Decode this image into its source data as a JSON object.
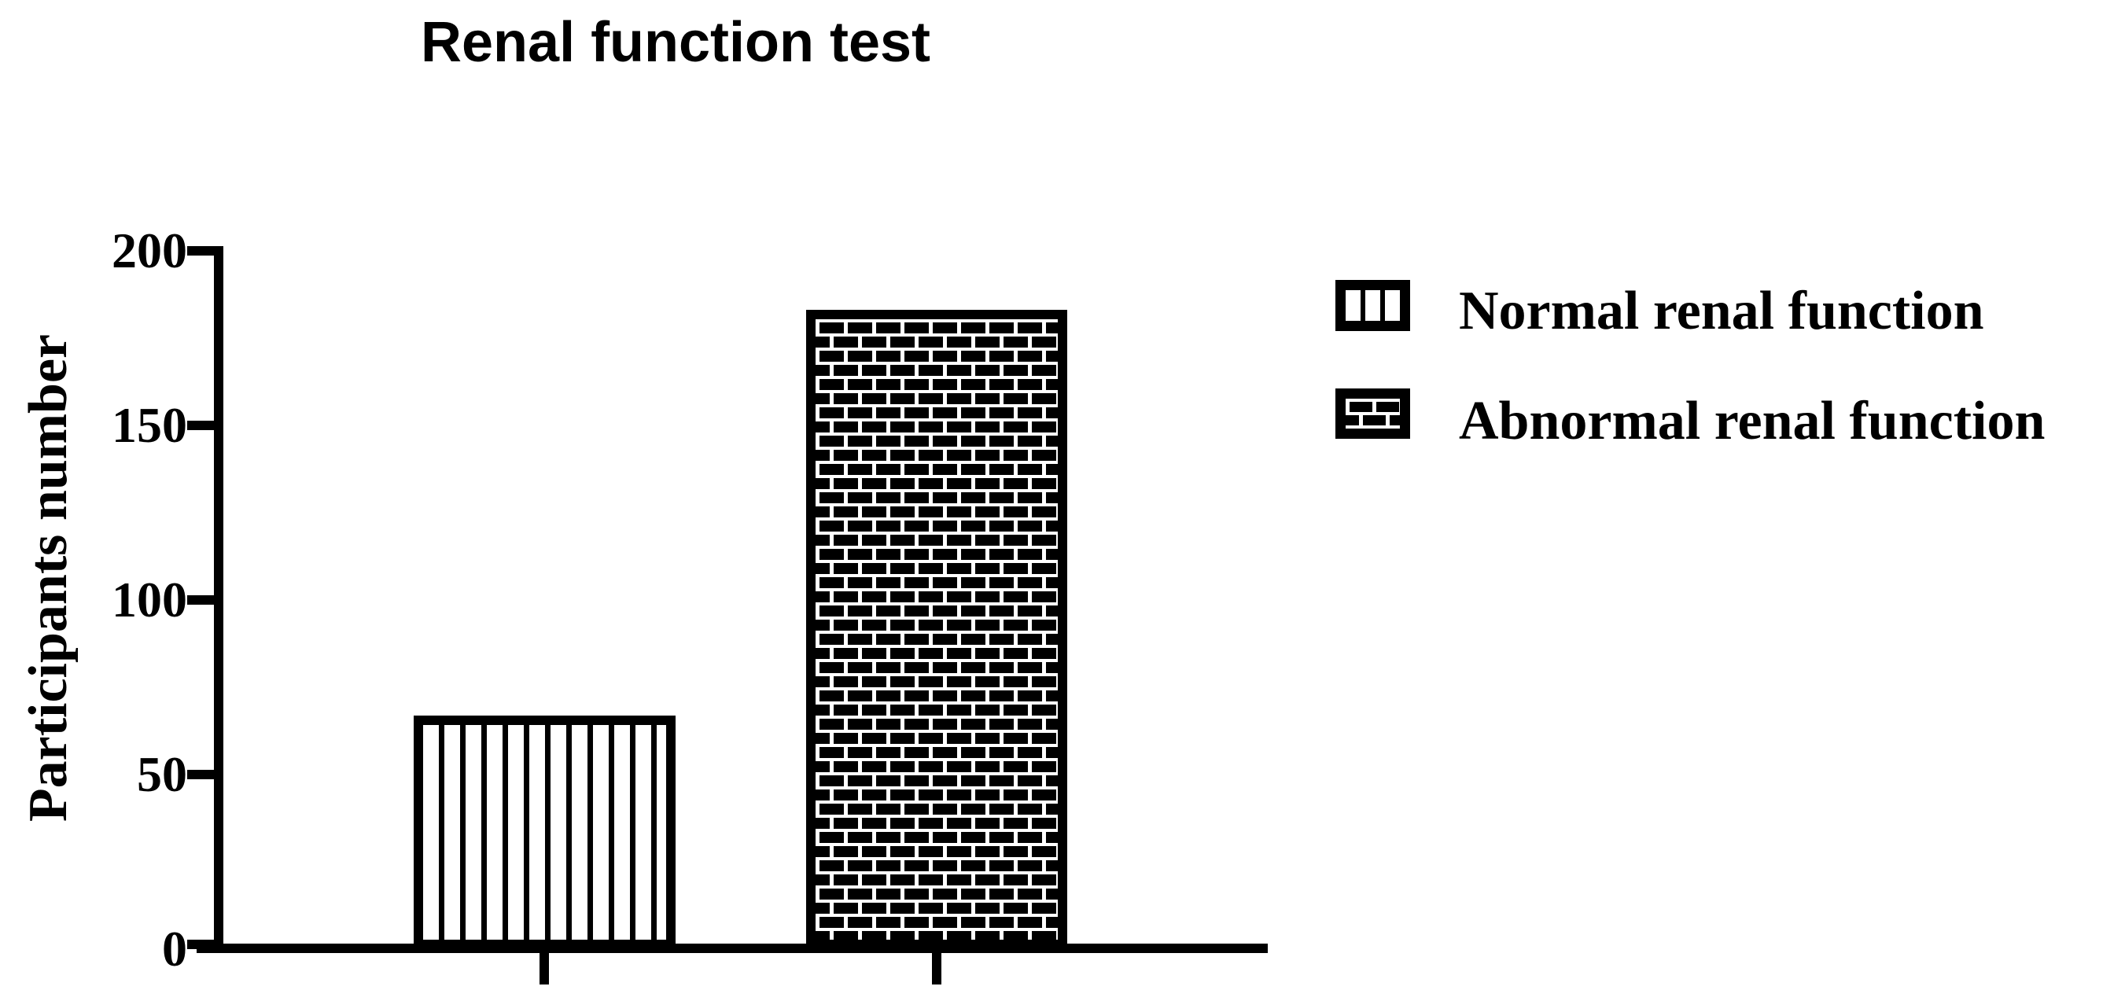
{
  "title": "Renal function test",
  "axes": {
    "y_label": "Participants number",
    "y_ticks": [
      "200",
      "150",
      "100",
      "50",
      "0"
    ]
  },
  "legend": {
    "items": [
      {
        "label": "Normal renal function",
        "pattern": "vertical-stripes"
      },
      {
        "label": "Abnormal renal function",
        "pattern": "bricks"
      }
    ]
  },
  "chart_data": {
    "type": "bar",
    "title": "Renal function test",
    "xlabel": "",
    "ylabel": "Participants number",
    "categories": [
      "Normal renal function",
      "Abnormal renal function"
    ],
    "values": [
      67,
      183
    ],
    "series": [
      {
        "name": "Normal renal function",
        "value": 67,
        "pattern": "vertical-stripes",
        "fill": "#ffffff",
        "stroke": "#000000"
      },
      {
        "name": "Abnormal renal function",
        "value": 183,
        "pattern": "bricks",
        "fill": "#000000",
        "stroke": "#000000"
      }
    ],
    "ylim": [
      0,
      200
    ],
    "yticks": [
      0,
      50,
      100,
      150,
      200
    ],
    "grid": false,
    "legend_position": "right",
    "colors": {
      "foreground": "#000000",
      "background": "#ffffff"
    }
  }
}
